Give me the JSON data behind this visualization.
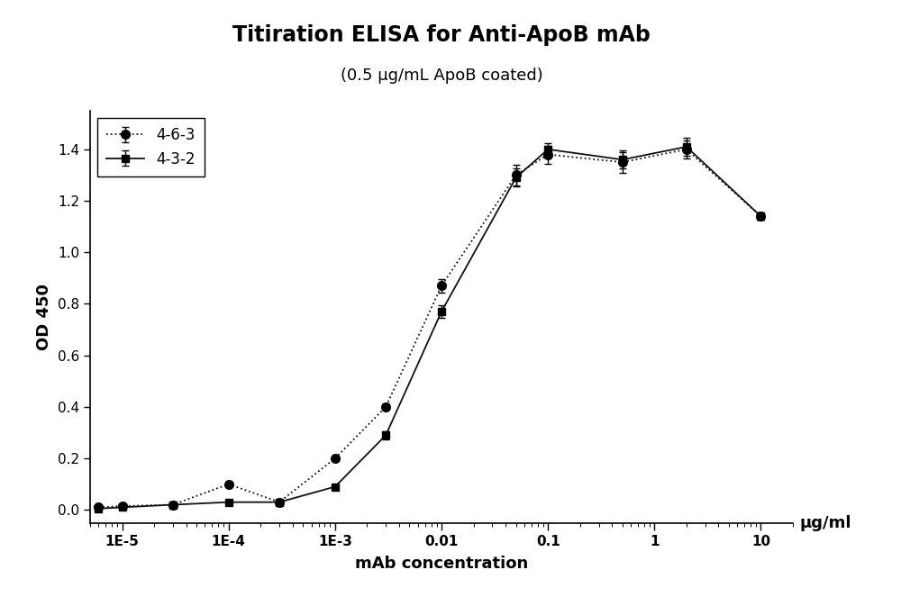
{
  "title": "Titiration ELISA for Anti-ApoB mAb",
  "subtitle": "(0.5 μg/mL ApoB coated)",
  "xlabel": "mAb concentration",
  "ylabel": "OD 450",
  "x_unit": "μg/ml",
  "xlim": [
    5e-06,
    20
  ],
  "ylim": [
    -0.05,
    1.55
  ],
  "yticks": [
    0.0,
    0.2,
    0.4,
    0.6,
    0.8,
    1.0,
    1.2,
    1.4
  ],
  "xtick_labels": [
    "1E-5",
    "1E-4",
    "1E-3",
    "0.01",
    "0.1",
    "1",
    "10"
  ],
  "xtick_values": [
    1e-05,
    0.0001,
    0.001,
    0.01,
    0.1,
    1,
    10
  ],
  "series_463": {
    "label": "4-6-3",
    "x": [
      6e-06,
      1e-05,
      3e-05,
      0.0001,
      0.0003,
      0.001,
      0.003,
      0.01,
      0.05,
      0.1,
      0.5,
      2,
      10
    ],
    "y": [
      0.01,
      0.015,
      0.02,
      0.1,
      0.03,
      0.2,
      0.4,
      0.87,
      1.3,
      1.38,
      1.35,
      1.4,
      1.14
    ],
    "yerr": [
      0.003,
      0.003,
      0.003,
      0.008,
      0.003,
      0.008,
      0.012,
      0.025,
      0.04,
      0.035,
      0.04,
      0.035,
      0.015
    ],
    "color": "#111111",
    "linestyle": "dotted",
    "marker": "o",
    "markersize": 7,
    "linewidth": 1.3
  },
  "series_432": {
    "label": "4-3-2",
    "x": [
      6e-06,
      1e-05,
      3e-05,
      0.0001,
      0.0003,
      0.001,
      0.003,
      0.01,
      0.05,
      0.1,
      0.5,
      2,
      10
    ],
    "y": [
      0.005,
      0.01,
      0.02,
      0.03,
      0.03,
      0.09,
      0.29,
      0.77,
      1.29,
      1.4,
      1.36,
      1.41,
      1.14
    ],
    "yerr": [
      0.002,
      0.002,
      0.003,
      0.003,
      0.003,
      0.008,
      0.015,
      0.025,
      0.035,
      0.025,
      0.035,
      0.035,
      0.015
    ],
    "color": "#111111",
    "linestyle": "solid",
    "marker": "s",
    "markersize": 6,
    "linewidth": 1.3
  },
  "background_color": "#ffffff",
  "legend_loc": "upper left",
  "title_fontsize": 17,
  "subtitle_fontsize": 13,
  "axis_fontsize": 13,
  "tick_fontsize": 11,
  "legend_fontsize": 12
}
